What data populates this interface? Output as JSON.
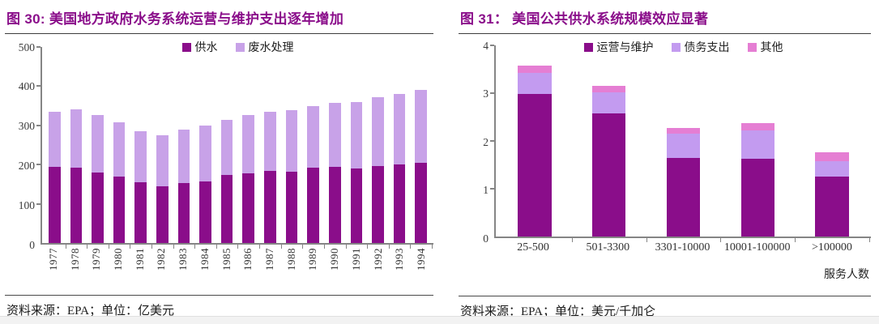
{
  "colors": {
    "title_purple": "#8A0D8A",
    "axis_gray": "#858585",
    "dark_purple": "#8A0D8A",
    "lavender": "#C8A2E8",
    "lavender_right": "#C39BF0",
    "orchid_pink": "#E57ED3"
  },
  "chart_data": [
    {
      "id": "fig30",
      "type": "bar",
      "stacked": true,
      "title": "图 30: 美国地方政府水务系统运营与维护支出逐年增加",
      "source_note": "资料来源：EPA；单位：亿美元",
      "legend_position": "top-center",
      "grid": false,
      "categories": [
        "1977",
        "1978",
        "1979",
        "1980",
        "1981",
        "1982",
        "1983",
        "1984",
        "1985",
        "1986",
        "1987",
        "1988",
        "1989",
        "1990",
        "1991",
        "1992",
        "1993",
        "1994"
      ],
      "series": [
        {
          "name": "供水",
          "color": "#8A0D8A",
          "values": [
            195,
            192,
            180,
            169,
            155,
            144,
            153,
            157,
            173,
            177,
            184,
            182,
            192,
            194,
            191,
            197,
            201,
            204
          ]
        },
        {
          "name": "废水处理",
          "color": "#C8A2E8",
          "values": [
            140,
            148,
            147,
            139,
            130,
            131,
            136,
            142,
            142,
            149,
            150,
            156,
            158,
            163,
            169,
            174,
            180,
            186
          ]
        }
      ],
      "ylim": [
        0,
        500
      ],
      "ytick_step": 100,
      "xlabel": "",
      "ylabel": ""
    },
    {
      "id": "fig31",
      "type": "bar",
      "stacked": true,
      "title": "图 31： 美国公共供水系统规模效应显著",
      "source_note": "资料来源：EPA；单位：美元/千加仑",
      "legend_position": "top-center",
      "grid": false,
      "categories": [
        "25-500",
        "501-3300",
        "3301-10000",
        "10001-100000",
        ">100000"
      ],
      "series": [
        {
          "name": "运营与维护",
          "color": "#8A0D8A",
          "values": [
            2.98,
            2.58,
            1.65,
            1.62,
            1.26
          ]
        },
        {
          "name": "债务支出",
          "color": "#C39BF0",
          "values": [
            0.45,
            0.43,
            0.5,
            0.6,
            0.32
          ]
        },
        {
          "name": "其他",
          "color": "#E57ED3",
          "values": [
            0.15,
            0.15,
            0.12,
            0.16,
            0.19
          ]
        }
      ],
      "ylim": [
        0,
        4
      ],
      "ytick_step": 1,
      "xlabel": "服务人数",
      "ylabel": ""
    }
  ]
}
